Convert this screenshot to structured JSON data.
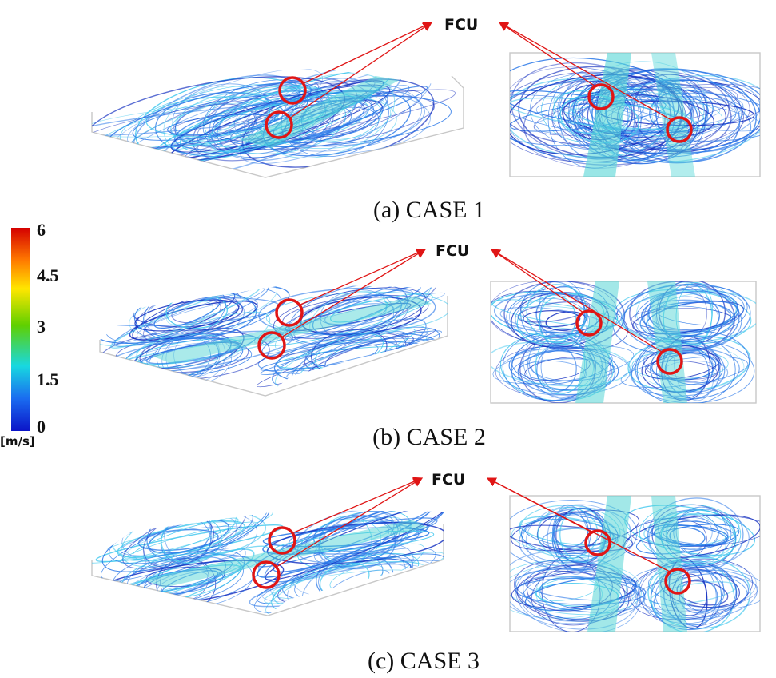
{
  "annotation": {
    "label": "FCU"
  },
  "colorbar": {
    "ticks": [
      "6",
      "4.5",
      "3",
      "1.5",
      "0"
    ],
    "unit": "[m/s]",
    "colors": [
      "#d40000",
      "#ff7a00",
      "#ffe600",
      "#5fd000",
      "#18d8e0",
      "#1a6cf0",
      "#0b14c8"
    ]
  },
  "panels": [
    {
      "caption": "(a) CASE 1",
      "mode": "two-fcu-single"
    },
    {
      "caption": "(b) CASE 2",
      "mode": "four-cell"
    },
    {
      "caption": "(c) CASE 3",
      "mode": "four-cell"
    }
  ],
  "colors": {
    "marker": "#e01515",
    "arrow": "#e01515",
    "streamline_dark": "#1530c0",
    "streamline_mid": "#2a78e8",
    "streamline_light": "#42c8ee",
    "jet": "#55d6d6"
  }
}
